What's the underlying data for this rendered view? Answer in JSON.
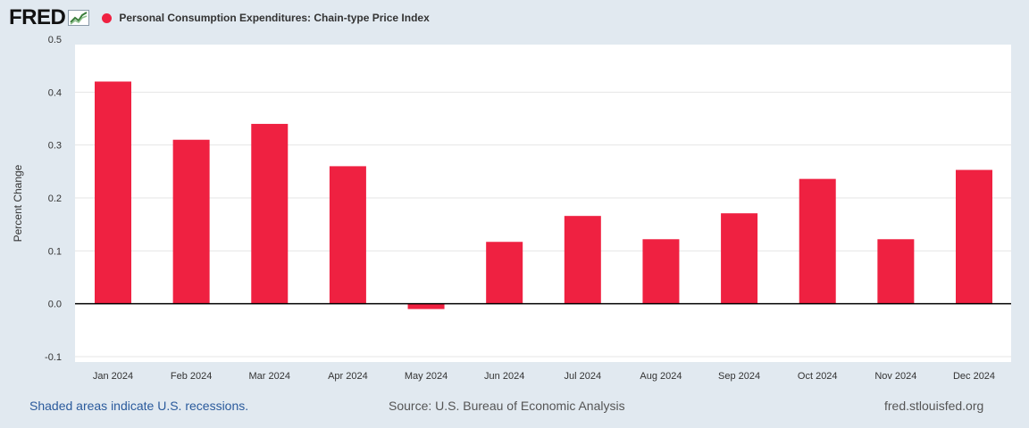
{
  "header": {
    "logo_text": "FRED",
    "series_title": "Personal Consumption Expenditures: Chain-type Price Index",
    "series_color": "#ef2141"
  },
  "chart_data": {
    "type": "bar",
    "title": "Personal Consumption Expenditures: Chain-type Price Index",
    "xlabel": "",
    "ylabel": "Percent Change",
    "categories": [
      "Jan 2024",
      "Feb 2024",
      "Mar 2024",
      "Apr 2024",
      "May 2024",
      "Jun 2024",
      "Jul 2024",
      "Aug 2024",
      "Sep 2024",
      "Oct 2024",
      "Nov 2024",
      "Dec 2024"
    ],
    "values": [
      0.42,
      0.31,
      0.34,
      0.26,
      -0.01,
      0.117,
      0.166,
      0.122,
      0.171,
      0.236,
      0.122,
      0.253
    ],
    "ylim": [
      -0.1,
      0.5
    ],
    "yticks": [
      "-0.1",
      "0.0",
      "0.1",
      "0.2",
      "0.3",
      "0.4",
      "0.5"
    ],
    "grid": true,
    "bar_color": "#ef2141"
  },
  "footer": {
    "left": "Shaded areas indicate U.S. recessions.",
    "source": "Source: U.S. Bureau of Economic Analysis",
    "site": "fred.stlouisfed.org"
  }
}
